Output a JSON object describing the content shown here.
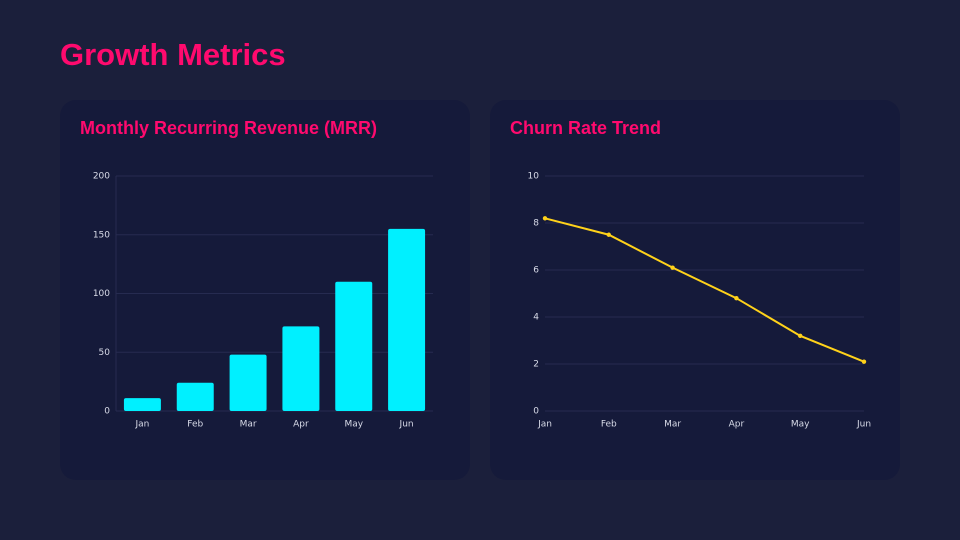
{
  "title": "Growth Metrics",
  "chart_data": [
    {
      "type": "bar",
      "title": "Monthly Recurring Revenue (MRR)",
      "categories": [
        "Jan",
        "Feb",
        "Mar",
        "Apr",
        "May",
        "Jun"
      ],
      "values": [
        11,
        24,
        48,
        72,
        110,
        155
      ],
      "color": "#00f0ff",
      "ylim": [
        0,
        200
      ],
      "yticks": [
        0,
        50,
        100,
        150,
        200
      ],
      "grid": true
    },
    {
      "type": "line",
      "title": "Churn Rate Trend",
      "categories": [
        "Jan",
        "Feb",
        "Mar",
        "Apr",
        "May",
        "Jun"
      ],
      "values": [
        8.2,
        7.5,
        6.1,
        4.8,
        3.2,
        2.1
      ],
      "color": "#ffd21a",
      "ylim": [
        0,
        10
      ],
      "yticks": [
        0,
        2,
        4,
        6,
        8,
        10
      ],
      "grid": true
    }
  ]
}
